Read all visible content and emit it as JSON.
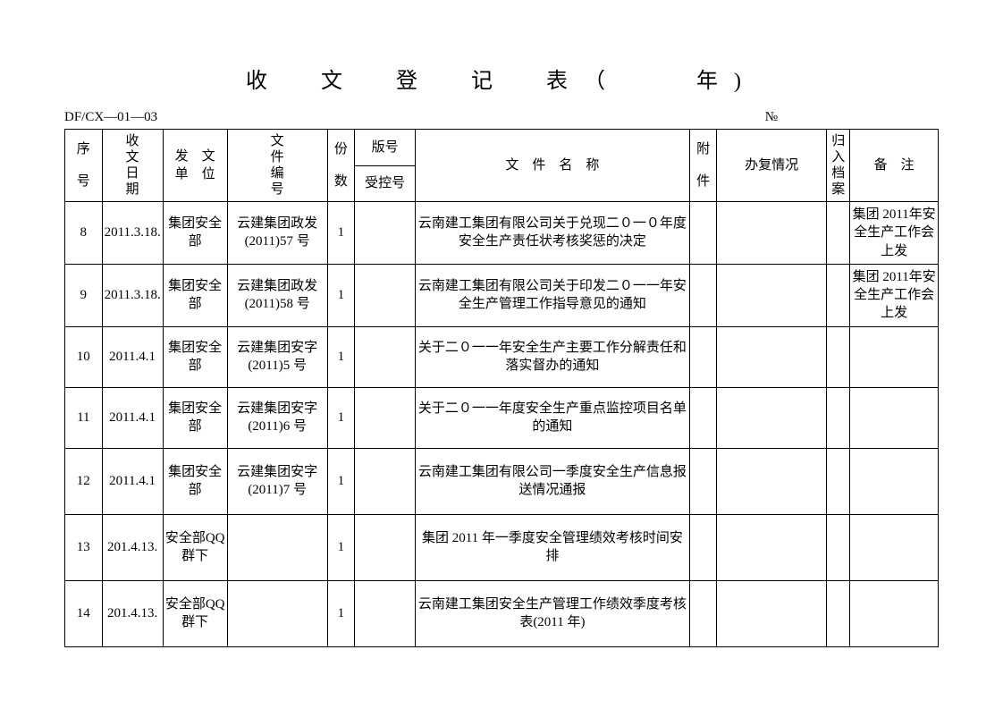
{
  "title": "收　文　登　记　表（　　年)",
  "meta": {
    "left": "DF/CX—01—03",
    "right": "№"
  },
  "header": {
    "seq_l1": "序",
    "seq_l2": "号",
    "date_l1": "收",
    "date_l2": "文",
    "date_l3": "日",
    "date_l4": "期",
    "unit_l1": "发　文",
    "unit_l2": "单　位",
    "doc_l1": "文",
    "doc_l2": "件",
    "doc_l3": "编",
    "doc_l4": "号",
    "copies_l1": "份",
    "copies_l2": "数",
    "version": "版号",
    "ctrlnum": "受控号",
    "name": "文　件　名　称",
    "attach_l1": "附",
    "attach_l2": "件",
    "reply": "办复情况",
    "archive_l1": "归",
    "archive_l2": "入",
    "archive_l3": "档",
    "archive_l4": "案",
    "remark": "备　注"
  },
  "rows": [
    {
      "seq": "8",
      "date": "2011.3.18.",
      "unit": "集团安全部",
      "docnum": "云建集团政发(2011)57 号",
      "copies": "1",
      "version": "",
      "name": "云南建工集团有限公司关于兑现二０一０年度安全生产责任状考核奖惩的决定",
      "attach": "",
      "reply": "",
      "archive": "",
      "remark": "集团 2011年安全生产工作会上发"
    },
    {
      "seq": "9",
      "date": "2011.3.18.",
      "unit": "集团安全部",
      "docnum": "云建集团政发(2011)58 号",
      "copies": "1",
      "version": "",
      "name": "云南建工集团有限公司关于印发二０一一年安全生产管理工作指导意见的通知",
      "attach": "",
      "reply": "",
      "archive": "",
      "remark": "集团 2011年安全生产工作会上发"
    },
    {
      "seq": "10",
      "date": "2011.4.1",
      "unit": "集团安全部",
      "docnum": "云建集团安字(2011)5 号",
      "copies": "1",
      "version": "",
      "name": "关于二０一一年安全生产主要工作分解责任和落实督办的通知",
      "attach": "",
      "reply": "",
      "archive": "",
      "remark": ""
    },
    {
      "seq": "11",
      "date": "2011.4.1",
      "unit": "集团安全部",
      "docnum": "云建集团安字(2011)6 号",
      "copies": "1",
      "version": "",
      "name": "关于二０一一年度安全生产重点监控项目名单的通知",
      "attach": "",
      "reply": "",
      "archive": "",
      "remark": ""
    },
    {
      "seq": "12",
      "date": "2011.4.1",
      "unit": "集团安全部",
      "docnum": "云建集团安字(2011)7 号",
      "copies": "1",
      "version": "",
      "name": "云南建工集团有限公司一季度安全生产信息报送情况通报",
      "attach": "",
      "reply": "",
      "archive": "",
      "remark": ""
    },
    {
      "seq": "13",
      "date": "201.4.13.",
      "unit": "安全部QQ 群下",
      "docnum": "",
      "copies": "1",
      "version": "",
      "name": "集团 2011 年一季度安全管理绩效考核时间安排",
      "attach": "",
      "reply": "",
      "archive": "",
      "remark": ""
    },
    {
      "seq": "14",
      "date": "201.4.13.",
      "unit": "安全部QQ 群下",
      "docnum": "",
      "copies": "1",
      "version": "",
      "name": "云南建工集团安全生产管理工作绩效季度考核表(2011 年)",
      "attach": "",
      "reply": "",
      "archive": "",
      "remark": ""
    }
  ]
}
